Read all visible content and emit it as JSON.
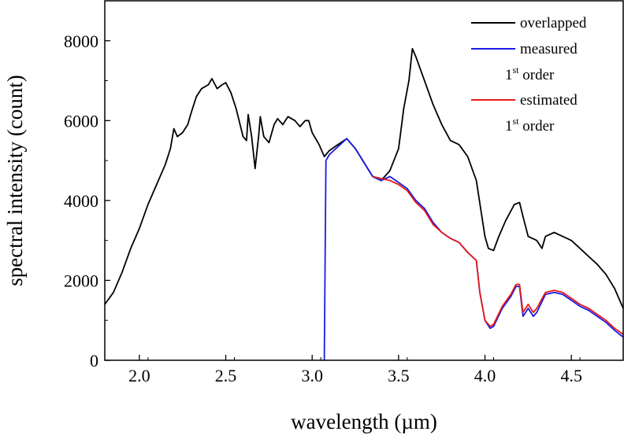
{
  "chart_data": {
    "type": "line",
    "xlabel": "wavelength (µm)",
    "ylabel": "spectral intensity (count)",
    "xlim": [
      1.8,
      4.8
    ],
    "ylim": [
      0,
      9000
    ],
    "x_ticks": [
      {
        "value": 2.0,
        "label": "2.0"
      },
      {
        "value": 2.5,
        "label": "2.5"
      },
      {
        "value": 3.0,
        "label": "3.0"
      },
      {
        "value": 3.5,
        "label": "3.5"
      },
      {
        "value": 4.0,
        "label": "4.0"
      },
      {
        "value": 4.5,
        "label": "4.5"
      }
    ],
    "y_ticks": [
      {
        "value": 0,
        "label": "0"
      },
      {
        "value": 2000,
        "label": "2000"
      },
      {
        "value": 4000,
        "label": "4000"
      },
      {
        "value": 6000,
        "label": "6000"
      },
      {
        "value": 8000,
        "label": "8000"
      }
    ],
    "grid": false,
    "legend_position": "top-right",
    "series": [
      {
        "name": "overlapped",
        "color": "#000000",
        "points": [
          [
            1.8,
            1400
          ],
          [
            1.85,
            1700
          ],
          [
            1.9,
            2200
          ],
          [
            1.95,
            2800
          ],
          [
            2.0,
            3300
          ],
          [
            2.05,
            3900
          ],
          [
            2.1,
            4400
          ],
          [
            2.15,
            4900
          ],
          [
            2.18,
            5300
          ],
          [
            2.2,
            5800
          ],
          [
            2.22,
            5600
          ],
          [
            2.25,
            5700
          ],
          [
            2.28,
            5900
          ],
          [
            2.3,
            6200
          ],
          [
            2.33,
            6600
          ],
          [
            2.36,
            6800
          ],
          [
            2.4,
            6900
          ],
          [
            2.42,
            7050
          ],
          [
            2.45,
            6800
          ],
          [
            2.48,
            6900
          ],
          [
            2.5,
            6950
          ],
          [
            2.53,
            6700
          ],
          [
            2.56,
            6300
          ],
          [
            2.6,
            5600
          ],
          [
            2.62,
            5500
          ],
          [
            2.63,
            6150
          ],
          [
            2.65,
            5600
          ],
          [
            2.67,
            4800
          ],
          [
            2.69,
            5600
          ],
          [
            2.7,
            6100
          ],
          [
            2.72,
            5600
          ],
          [
            2.75,
            5450
          ],
          [
            2.78,
            5900
          ],
          [
            2.8,
            6050
          ],
          [
            2.83,
            5900
          ],
          [
            2.86,
            6100
          ],
          [
            2.9,
            6000
          ],
          [
            2.93,
            5850
          ],
          [
            2.96,
            6000
          ],
          [
            2.98,
            6000
          ],
          [
            3.0,
            5700
          ],
          [
            3.04,
            5400
          ],
          [
            3.07,
            5100
          ],
          [
            3.1,
            5250
          ],
          [
            3.15,
            5400
          ],
          [
            3.2,
            5550
          ],
          [
            3.25,
            5300
          ],
          [
            3.3,
            4950
          ],
          [
            3.35,
            4600
          ],
          [
            3.4,
            4500
          ],
          [
            3.45,
            4750
          ],
          [
            3.5,
            5300
          ],
          [
            3.53,
            6300
          ],
          [
            3.56,
            7000
          ],
          [
            3.58,
            7800
          ],
          [
            3.6,
            7600
          ],
          [
            3.65,
            7000
          ],
          [
            3.7,
            6400
          ],
          [
            3.75,
            5900
          ],
          [
            3.8,
            5500
          ],
          [
            3.85,
            5400
          ],
          [
            3.9,
            5100
          ],
          [
            3.95,
            4500
          ],
          [
            4.0,
            3100
          ],
          [
            4.02,
            2800
          ],
          [
            4.05,
            2750
          ],
          [
            4.08,
            3100
          ],
          [
            4.12,
            3500
          ],
          [
            4.17,
            3900
          ],
          [
            4.2,
            3950
          ],
          [
            4.22,
            3600
          ],
          [
            4.25,
            3100
          ],
          [
            4.3,
            3000
          ],
          [
            4.33,
            2800
          ],
          [
            4.35,
            3100
          ],
          [
            4.4,
            3200
          ],
          [
            4.45,
            3100
          ],
          [
            4.5,
            3000
          ],
          [
            4.55,
            2800
          ],
          [
            4.6,
            2600
          ],
          [
            4.65,
            2400
          ],
          [
            4.7,
            2150
          ],
          [
            4.75,
            1800
          ],
          [
            4.8,
            1300
          ]
        ]
      },
      {
        "name": "measured 1st order",
        "color": "#1a1ae6",
        "points": [
          [
            3.07,
            0
          ],
          [
            3.08,
            5000
          ],
          [
            3.1,
            5150
          ],
          [
            3.15,
            5350
          ],
          [
            3.2,
            5550
          ],
          [
            3.25,
            5300
          ],
          [
            3.3,
            4950
          ],
          [
            3.35,
            4600
          ],
          [
            3.4,
            4500
          ],
          [
            3.45,
            4600
          ],
          [
            3.5,
            4450
          ],
          [
            3.55,
            4300
          ],
          [
            3.6,
            4000
          ],
          [
            3.65,
            3800
          ],
          [
            3.7,
            3450
          ],
          [
            3.75,
            3200
          ],
          [
            3.8,
            3050
          ],
          [
            3.85,
            2950
          ],
          [
            3.9,
            2700
          ],
          [
            3.95,
            2500
          ],
          [
            3.97,
            1700
          ],
          [
            4.0,
            1000
          ],
          [
            4.03,
            800
          ],
          [
            4.05,
            850
          ],
          [
            4.1,
            1300
          ],
          [
            4.15,
            1600
          ],
          [
            4.18,
            1850
          ],
          [
            4.2,
            1850
          ],
          [
            4.22,
            1100
          ],
          [
            4.25,
            1300
          ],
          [
            4.28,
            1100
          ],
          [
            4.3,
            1200
          ],
          [
            4.35,
            1650
          ],
          [
            4.4,
            1700
          ],
          [
            4.45,
            1650
          ],
          [
            4.5,
            1500
          ],
          [
            4.55,
            1350
          ],
          [
            4.6,
            1250
          ],
          [
            4.65,
            1100
          ],
          [
            4.7,
            950
          ],
          [
            4.75,
            750
          ],
          [
            4.8,
            580
          ]
        ]
      },
      {
        "name": "estimated 1st order",
        "color": "#e61a1a",
        "points": [
          [
            3.35,
            4600
          ],
          [
            3.4,
            4550
          ],
          [
            3.45,
            4500
          ],
          [
            3.5,
            4400
          ],
          [
            3.55,
            4250
          ],
          [
            3.6,
            3950
          ],
          [
            3.65,
            3750
          ],
          [
            3.7,
            3400
          ],
          [
            3.75,
            3200
          ],
          [
            3.8,
            3050
          ],
          [
            3.85,
            2950
          ],
          [
            3.9,
            2700
          ],
          [
            3.95,
            2500
          ],
          [
            3.97,
            1700
          ],
          [
            4.0,
            1000
          ],
          [
            4.03,
            850
          ],
          [
            4.05,
            900
          ],
          [
            4.1,
            1350
          ],
          [
            4.15,
            1650
          ],
          [
            4.18,
            1900
          ],
          [
            4.2,
            1900
          ],
          [
            4.22,
            1200
          ],
          [
            4.25,
            1400
          ],
          [
            4.28,
            1200
          ],
          [
            4.3,
            1300
          ],
          [
            4.35,
            1700
          ],
          [
            4.4,
            1750
          ],
          [
            4.45,
            1700
          ],
          [
            4.5,
            1550
          ],
          [
            4.55,
            1400
          ],
          [
            4.6,
            1300
          ],
          [
            4.65,
            1150
          ],
          [
            4.7,
            1000
          ],
          [
            4.75,
            800
          ],
          [
            4.8,
            650
          ]
        ]
      }
    ],
    "legend": [
      {
        "series": "overlapped",
        "color": "#000000",
        "line1": "overlapped",
        "line2": null
      },
      {
        "series": "measured 1st order",
        "color": "#1a1ae6",
        "line1": "measured",
        "line2": {
          "num": "1",
          "sup": "st",
          "rest": " order"
        }
      },
      {
        "series": "estimated 1st order",
        "color": "#e61a1a",
        "line1": "estimated",
        "line2": {
          "num": "1",
          "sup": "st",
          "rest": " order"
        }
      }
    ]
  }
}
